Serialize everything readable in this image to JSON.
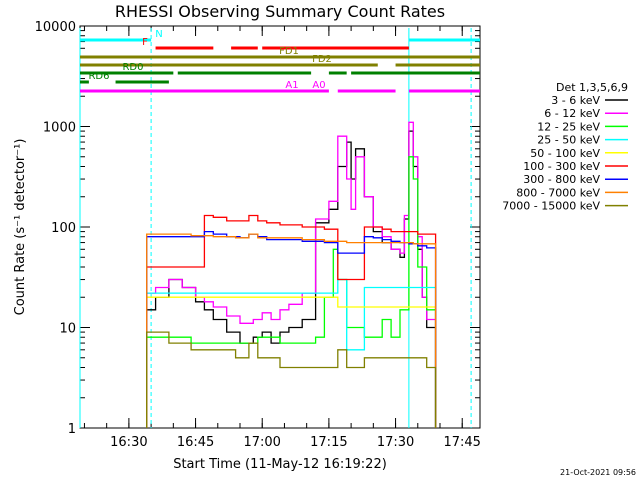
{
  "chart_data": {
    "type": "line",
    "title": "RHESSI Observing Summary Count Rates",
    "xlabel": "Start Time (11-May-12 16:19:22)",
    "ylabel": "Count Rate (s⁻¹ detector⁻¹)",
    "y_scale": "log",
    "ylim": [
      1,
      10000
    ],
    "xlim_minutes": [
      0,
      90
    ],
    "x_tick_labels": [
      "16:30",
      "16:45",
      "17:00",
      "17:15",
      "17:30",
      "17:45"
    ],
    "x_tick_minutes": [
      11,
      26,
      41,
      56,
      71,
      86
    ],
    "y_tick_labels": [
      "1",
      "10",
      "100",
      "1000",
      "10000"
    ],
    "y_tick_values": [
      1,
      10,
      100,
      1000,
      10000
    ],
    "legend_title": "Det 1,3,5,6,9",
    "legend_placement": "right",
    "footer": "21-Oct-2021 09:56",
    "series": [
      {
        "name": "3 - 6 keV",
        "color": "#000000",
        "x": [
          15,
          17,
          20,
          23,
          26,
          28,
          30,
          33,
          36,
          39,
          41,
          43,
          45,
          47,
          50,
          53,
          56,
          58,
          60,
          61,
          62,
          64,
          66,
          68,
          70,
          72,
          73,
          74,
          75,
          76,
          77,
          78,
          80
        ],
        "y": [
          15,
          20,
          30,
          25,
          18,
          15,
          12,
          9,
          7,
          8,
          9,
          7,
          9,
          10,
          12,
          110,
          150,
          400,
          700,
          300,
          600,
          200,
          90,
          70,
          60,
          50,
          120,
          900,
          400,
          60,
          20,
          10,
          8
        ]
      },
      {
        "name": "6 - 12 keV",
        "color": "#ff00ff",
        "x": [
          15,
          17,
          20,
          23,
          26,
          28,
          30,
          33,
          36,
          39,
          41,
          43,
          45,
          47,
          50,
          53,
          56,
          58,
          60,
          61,
          62,
          64,
          66,
          68,
          70,
          72,
          73,
          74,
          75,
          76,
          77,
          78,
          80
        ],
        "y": [
          22,
          25,
          30,
          25,
          20,
          18,
          16,
          13,
          11,
          12,
          14,
          12,
          15,
          17,
          22,
          120,
          180,
          800,
          300,
          150,
          500,
          200,
          100,
          80,
          60,
          55,
          130,
          1100,
          500,
          80,
          20,
          12,
          10
        ]
      },
      {
        "name": "12 - 25 keV",
        "color": "#00ff00",
        "x": [
          15,
          20,
          25,
          30,
          35,
          40,
          45,
          50,
          53,
          55,
          57,
          58,
          60,
          62,
          64,
          66,
          68,
          70,
          72,
          74,
          75,
          76,
          78,
          80
        ],
        "y": [
          8,
          8,
          7,
          7,
          7,
          8,
          7,
          7,
          8,
          20,
          60,
          30,
          10,
          10,
          8,
          8,
          12,
          8,
          15,
          500,
          300,
          40,
          15,
          14
        ]
      },
      {
        "name": "25 - 50 keV",
        "color": "#00ffff",
        "x": [
          15,
          20,
          25,
          30,
          35,
          40,
          45,
          50,
          55,
          58,
          60,
          62,
          64,
          66,
          68,
          70,
          72,
          74,
          76,
          78,
          80
        ],
        "y": [
          22,
          22,
          22,
          22,
          22,
          22,
          22,
          22,
          22,
          30,
          6,
          6,
          25,
          25,
          25,
          25,
          25,
          25,
          25,
          25,
          25
        ]
      },
      {
        "name": "50 - 100 keV",
        "color": "#ffff00",
        "x": [
          15,
          20,
          25,
          30,
          35,
          40,
          45,
          50,
          55,
          58,
          60,
          62,
          64,
          66,
          68,
          70,
          72,
          74,
          76,
          78,
          80
        ],
        "y": [
          20,
          20,
          20,
          20,
          20,
          20,
          20,
          20,
          20,
          16,
          16,
          16,
          16,
          16,
          16,
          16,
          16,
          16,
          16,
          16,
          16
        ]
      },
      {
        "name": "100 - 300 keV",
        "color": "#ff0000",
        "x": [
          15,
          20,
          25,
          28,
          30,
          33,
          36,
          38,
          40,
          42,
          45,
          50,
          55,
          58,
          60,
          62,
          64,
          66,
          68,
          70,
          72,
          74,
          76,
          78,
          80
        ],
        "y": [
          40,
          40,
          40,
          130,
          125,
          115,
          115,
          130,
          115,
          110,
          105,
          100,
          95,
          30,
          30,
          30,
          100,
          100,
          95,
          90,
          90,
          90,
          85,
          85,
          80
        ]
      },
      {
        "name": "300 - 800 keV",
        "color": "#0000ff",
        "x": [
          15,
          20,
          25,
          28,
          30,
          33,
          36,
          38,
          40,
          42,
          45,
          50,
          55,
          58,
          60,
          62,
          64,
          66,
          68,
          70,
          72,
          74,
          76,
          78,
          80
        ],
        "y": [
          80,
          80,
          80,
          90,
          85,
          80,
          78,
          85,
          80,
          75,
          75,
          72,
          70,
          55,
          55,
          55,
          80,
          78,
          75,
          72,
          70,
          68,
          65,
          62,
          60
        ]
      },
      {
        "name": "800 - 7000 keV",
        "color": "#ff8000",
        "x": [
          15,
          20,
          25,
          30,
          35,
          38,
          40,
          45,
          50,
          55,
          60,
          65,
          70,
          75,
          80
        ],
        "y": [
          85,
          85,
          82,
          80,
          78,
          85,
          78,
          78,
          75,
          72,
          70,
          70,
          70,
          68,
          66
        ]
      },
      {
        "name": "7000 - 15000 keV",
        "color": "#808000",
        "x": [
          15,
          20,
          25,
          30,
          35,
          38,
          40,
          45,
          50,
          55,
          58,
          60,
          62,
          64,
          66,
          68,
          70,
          72,
          74,
          76,
          78,
          80
        ],
        "y": [
          9,
          7,
          6,
          6,
          5,
          7,
          5,
          4,
          4,
          4,
          6,
          4,
          4,
          5,
          5,
          5,
          5,
          5,
          5,
          5,
          4,
          4
        ]
      }
    ],
    "flag_bars": [
      {
        "label": "N",
        "color": "#00ffff",
        "segments": [
          [
            0,
            16
          ],
          [
            74,
            90
          ]
        ]
      },
      {
        "label": "F",
        "color": "#ff0000",
        "segments": [
          [
            17,
            30
          ],
          [
            34,
            40
          ],
          [
            41,
            74
          ]
        ]
      },
      {
        "label": "FD1",
        "color": "#808000",
        "segments": [
          [
            0,
            90
          ]
        ]
      },
      {
        "label": "FD2",
        "color": "#808000",
        "segments": [
          [
            0,
            67
          ],
          [
            71,
            90
          ]
        ]
      },
      {
        "label": "RD0",
        "color": "#008000",
        "segments": [
          [
            0,
            21
          ],
          [
            22,
            52
          ],
          [
            56,
            60
          ],
          [
            61,
            90
          ]
        ]
      },
      {
        "label": "RD6",
        "color": "#008000",
        "segments": [
          [
            0,
            2
          ],
          [
            8,
            20
          ]
        ]
      },
      {
        "label": "A1",
        "color": "#ff00ff",
        "segments": [
          [
            0,
            56
          ],
          [
            58,
            71
          ]
        ]
      },
      {
        "label": "A0",
        "color": "#ff00ff",
        "segments": [
          [
            74,
            90
          ]
        ]
      }
    ],
    "markers": [
      {
        "color": "#00ffff",
        "style": "solid",
        "x": [
          0,
          74
        ]
      },
      {
        "color": "#00ffff",
        "style": "dashed",
        "x": [
          16,
          88
        ]
      }
    ]
  }
}
